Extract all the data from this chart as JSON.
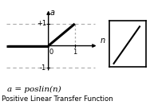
{
  "bg_color": "#ffffff",
  "axis_color": "#000000",
  "line_color": "#000000",
  "dashed_color": "#aaaaaa",
  "title_text": "Positive Linear Transfer Function",
  "formula_text": "a = poslin(n)",
  "xlabel": "n",
  "ylabel": "a",
  "box_line_color": "#000000",
  "plot_xlim": [
    -1.6,
    1.9
  ],
  "plot_ylim": [
    -1.5,
    1.7
  ]
}
